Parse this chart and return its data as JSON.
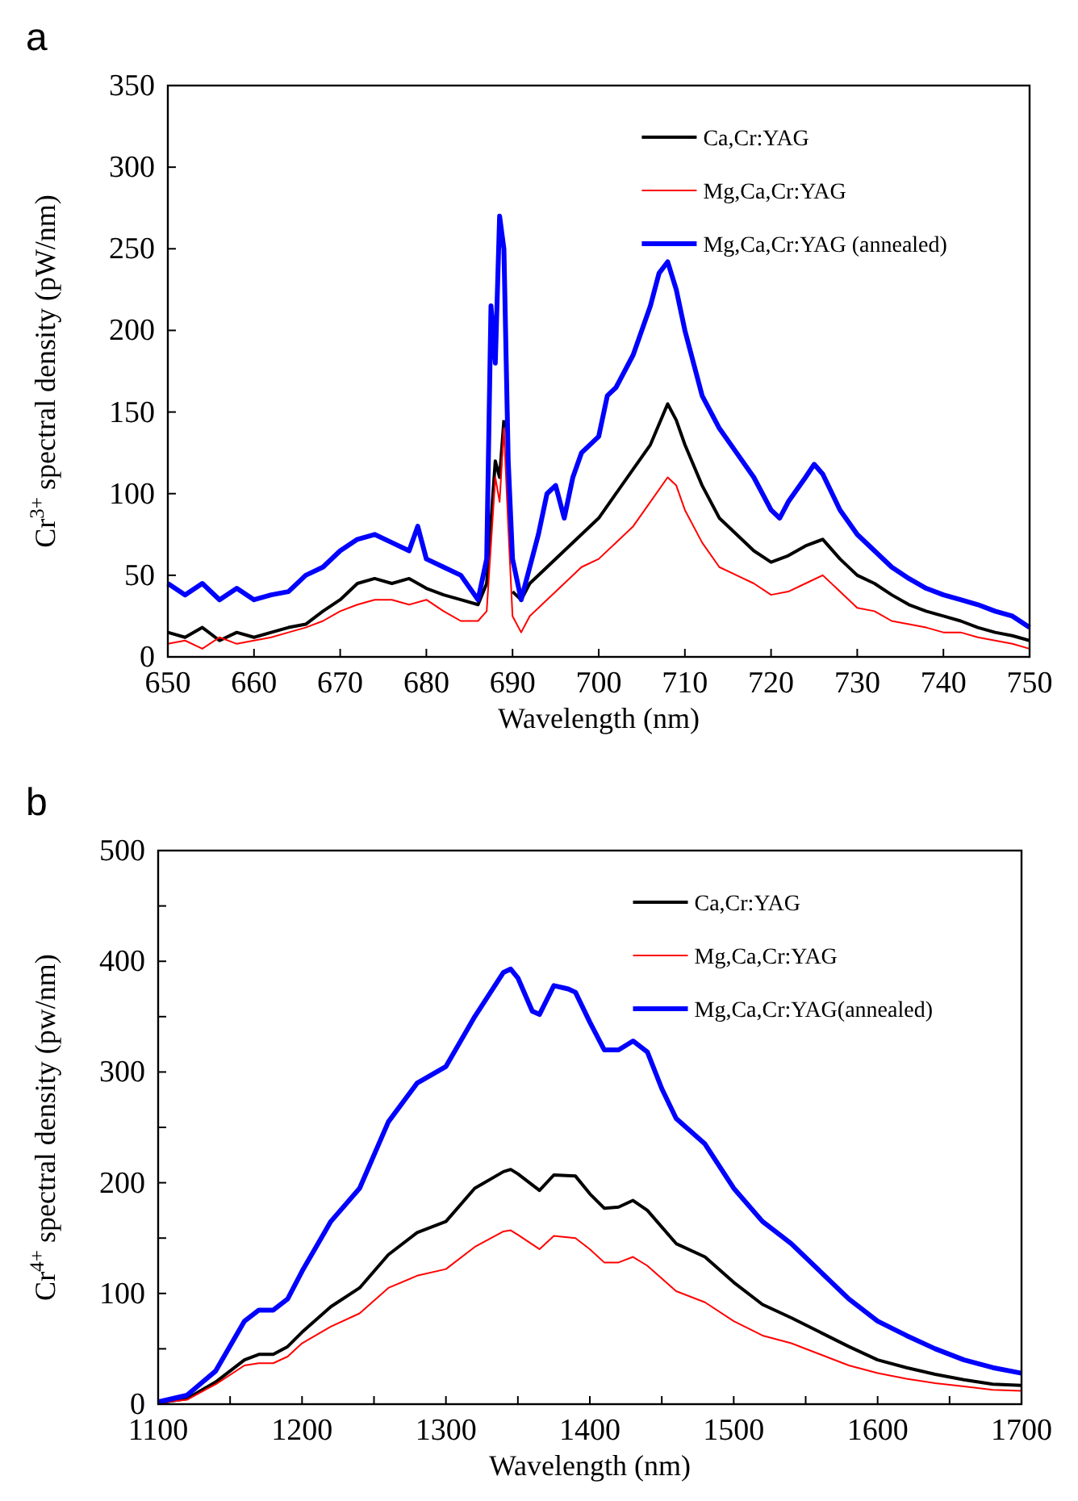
{
  "chart_data": [
    {
      "type": "line",
      "title": "a",
      "xlabel": "Wavelength (nm)",
      "ylabel": "Cr$^{3+}$ spectral density (pW/nm)",
      "xlim": [
        650,
        750
      ],
      "xticks": [
        650,
        660,
        670,
        680,
        690,
        700,
        710,
        720,
        730,
        740,
        750
      ],
      "ylim": [
        0,
        350
      ],
      "yticks": [
        0,
        50,
        100,
        150,
        200,
        250,
        300,
        350
      ],
      "grid": false,
      "legend": "top right",
      "line_style": "solid",
      "series": [
        {
          "name": "Ca,Cr:YAG",
          "color": "#000000",
          "x": [
            650,
            652,
            654,
            656,
            658,
            660,
            662,
            664,
            666,
            668,
            670,
            672,
            674,
            676,
            678,
            680,
            682,
            684,
            686,
            687,
            688,
            688.5,
            689,
            689.5,
            690,
            691,
            692,
            694,
            696,
            698,
            700,
            702,
            704,
            706,
            708,
            709,
            710,
            712,
            714,
            716,
            718,
            720,
            722,
            724,
            726,
            728,
            730,
            732,
            734,
            736,
            738,
            740,
            742,
            744,
            746,
            748,
            750
          ],
          "values": [
            15,
            12,
            18,
            10,
            15,
            12,
            15,
            18,
            20,
            28,
            35,
            45,
            48,
            45,
            48,
            42,
            38,
            35,
            32,
            45,
            120,
            110,
            145,
            null,
            40,
            35,
            45,
            55,
            65,
            75,
            85,
            100,
            115,
            130,
            155,
            145,
            130,
            105,
            85,
            75,
            65,
            58,
            62,
            68,
            72,
            60,
            50,
            45,
            38,
            32,
            28,
            25,
            22,
            18,
            15,
            13,
            10
          ]
        },
        {
          "name": "Mg,Ca,Cr:YAG",
          "color": "#ff0000",
          "x": [
            650,
            652,
            654,
            656,
            658,
            660,
            662,
            664,
            666,
            668,
            670,
            672,
            674,
            676,
            678,
            680,
            682,
            684,
            686,
            687,
            688,
            688.5,
            689,
            689.5,
            690,
            691,
            692,
            694,
            696,
            698,
            700,
            702,
            704,
            706,
            708,
            709,
            710,
            712,
            714,
            716,
            718,
            720,
            722,
            724,
            726,
            728,
            730,
            732,
            734,
            736,
            738,
            740,
            742,
            744,
            746,
            748,
            750
          ],
          "values": [
            8,
            10,
            5,
            12,
            8,
            10,
            12,
            15,
            18,
            22,
            28,
            32,
            35,
            35,
            32,
            35,
            28,
            22,
            22,
            28,
            110,
            95,
            140,
            80,
            25,
            15,
            25,
            35,
            45,
            55,
            60,
            70,
            80,
            95,
            110,
            105,
            90,
            70,
            55,
            50,
            45,
            38,
            40,
            45,
            50,
            40,
            30,
            28,
            22,
            20,
            18,
            15,
            15,
            12,
            10,
            8,
            5
          ]
        },
        {
          "name": "Mg,Ca,Cr:YAG (annealed)",
          "color": "#0000ff",
          "x": [
            650,
            652,
            654,
            656,
            658,
            660,
            662,
            664,
            666,
            668,
            670,
            672,
            674,
            676,
            678,
            679,
            680,
            682,
            684,
            686,
            687,
            687.5,
            688,
            688.5,
            689,
            689.5,
            690,
            691,
            692,
            693,
            694,
            695,
            696,
            697,
            698,
            700,
            701,
            702,
            704,
            706,
            707,
            708,
            709,
            710,
            712,
            714,
            716,
            718,
            720,
            721,
            722,
            724,
            725,
            726,
            728,
            730,
            732,
            734,
            736,
            738,
            740,
            742,
            744,
            746,
            748,
            750
          ],
          "values": [
            45,
            38,
            45,
            35,
            42,
            35,
            38,
            40,
            50,
            55,
            65,
            72,
            75,
            70,
            65,
            80,
            60,
            55,
            50,
            35,
            60,
            215,
            180,
            270,
            250,
            120,
            60,
            35,
            55,
            75,
            100,
            105,
            85,
            110,
            125,
            135,
            160,
            165,
            185,
            215,
            235,
            242,
            225,
            200,
            160,
            140,
            125,
            110,
            90,
            85,
            95,
            110,
            118,
            112,
            90,
            75,
            65,
            55,
            48,
            42,
            38,
            35,
            32,
            28,
            25,
            18
          ]
        }
      ]
    },
    {
      "type": "line",
      "title": "b",
      "xlabel": "Wavelength (nm)",
      "ylabel": "Cr$^{4+}$ spectral density (pw/nm)",
      "xlim": [
        1100,
        1700
      ],
      "xticks": [
        1100,
        {
          "value": 1150,
          "label": null
        },
        1200,
        {
          "value": 1250,
          "label": null
        },
        1300,
        {
          "value": 1350,
          "label": null
        },
        1400,
        {
          "value": 1450,
          "label": null
        },
        1500,
        {
          "value": 1550,
          "label": null
        },
        1600,
        {
          "value": 1650,
          "label": null
        },
        1700
      ],
      "ylim": [
        0,
        500
      ],
      "yticks": [
        0,
        {
          "value": 50,
          "label": null
        },
        100,
        {
          "value": 150,
          "label": null
        },
        200,
        {
          "value": 250,
          "label": null
        },
        300,
        {
          "value": 350,
          "label": null
        },
        400,
        {
          "value": 450,
          "label": null
        },
        500
      ],
      "grid": false,
      "legend": "top right",
      "line_style": "solid",
      "series": [
        {
          "name": "Ca,Cr:YAG",
          "color": "#000000",
          "x": [
            1100,
            1120,
            1140,
            1160,
            1170,
            1180,
            1190,
            1200,
            1220,
            1240,
            1260,
            1280,
            1300,
            1320,
            1340,
            1345,
            1350,
            1365,
            1375,
            1390,
            1400,
            1410,
            1420,
            1430,
            1440,
            1460,
            1480,
            1500,
            1520,
            1540,
            1560,
            1580,
            1600,
            1620,
            1640,
            1660,
            1680,
            1700
          ],
          "values": [
            1,
            5,
            20,
            40,
            45,
            45,
            52,
            65,
            88,
            105,
            135,
            155,
            165,
            195,
            210,
            212,
            208,
            193,
            207,
            206,
            190,
            177,
            178,
            184,
            175,
            145,
            133,
            110,
            90,
            78,
            65,
            52,
            40,
            33,
            27,
            22,
            18,
            17
          ]
        },
        {
          "name": "Mg,Ca,Cr:YAG",
          "color": "#ff0000",
          "x": [
            1100,
            1120,
            1140,
            1160,
            1170,
            1180,
            1190,
            1200,
            1220,
            1240,
            1260,
            1280,
            1300,
            1320,
            1340,
            1345,
            1350,
            1365,
            1375,
            1390,
            1400,
            1410,
            1420,
            1430,
            1440,
            1460,
            1480,
            1500,
            1520,
            1540,
            1560,
            1580,
            1600,
            1620,
            1640,
            1660,
            1680,
            1700
          ],
          "values": [
            1,
            4,
            18,
            35,
            37,
            37,
            43,
            55,
            70,
            82,
            105,
            116,
            122,
            142,
            156,
            157,
            153,
            140,
            152,
            150,
            140,
            128,
            128,
            133,
            125,
            102,
            92,
            75,
            62,
            55,
            45,
            35,
            28,
            23,
            19,
            16,
            13,
            12
          ]
        },
        {
          "name": "Mg,Ca,Cr:YAG(annealed)",
          "color": "#0000ff",
          "x": [
            1100,
            1120,
            1140,
            1160,
            1170,
            1180,
            1190,
            1200,
            1220,
            1240,
            1260,
            1280,
            1300,
            1320,
            1340,
            1345,
            1350,
            1360,
            1365,
            1375,
            1385,
            1390,
            1400,
            1410,
            1420,
            1430,
            1440,
            1450,
            1460,
            1480,
            1500,
            1520,
            1540,
            1560,
            1580,
            1600,
            1620,
            1640,
            1660,
            1680,
            1700
          ],
          "values": [
            2,
            8,
            30,
            75,
            85,
            85,
            95,
            120,
            165,
            195,
            255,
            290,
            305,
            350,
            390,
            393,
            385,
            355,
            352,
            378,
            375,
            372,
            345,
            320,
            320,
            328,
            318,
            285,
            258,
            235,
            195,
            165,
            145,
            120,
            95,
            75,
            62,
            50,
            40,
            33,
            28
          ]
        }
      ]
    }
  ]
}
